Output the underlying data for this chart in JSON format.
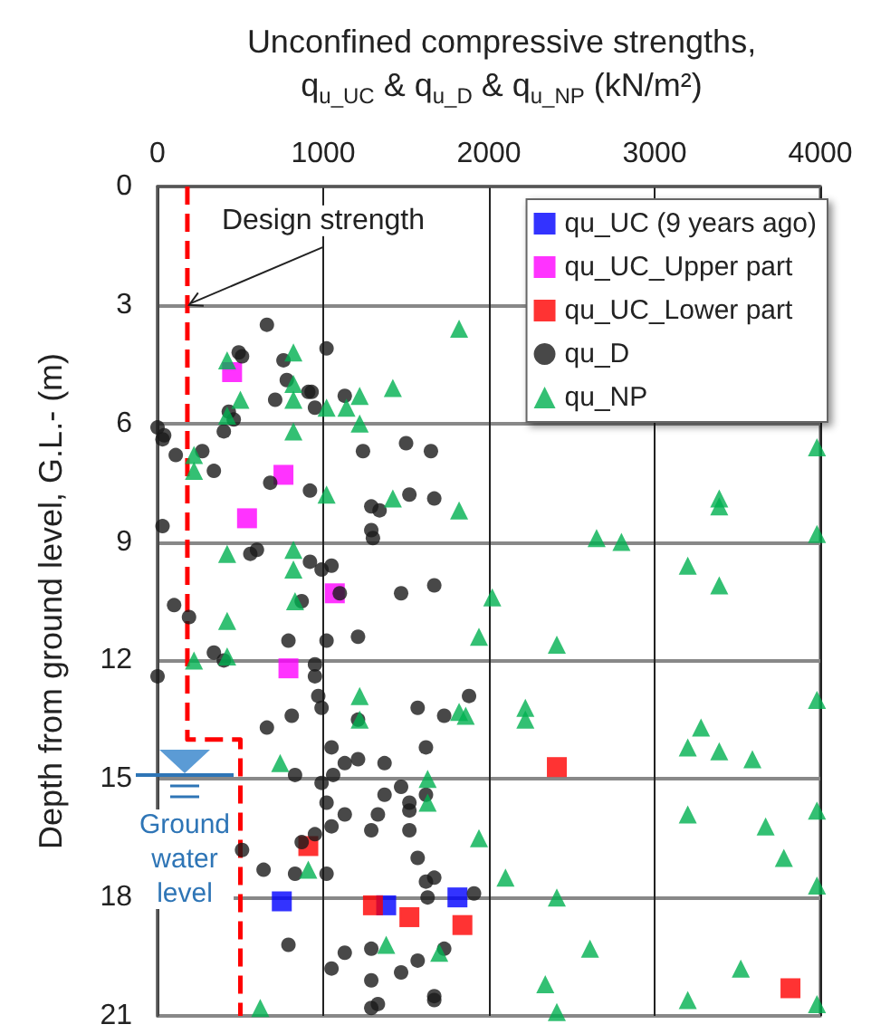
{
  "chart_data": {
    "type": "scatter",
    "xlabel": "Unconfined compressive strengths, q$_{u_UC}$ & q$_{u_D}$ & q$_{u_NP}$ (kN/m²)",
    "ylabel": "Depth from ground level, G.L.- (m)",
    "xlim": [
      0,
      4000
    ],
    "xticks": [
      0,
      1000,
      2000,
      3000,
      4000
    ],
    "ylim": [
      21,
      0
    ],
    "yticks": [
      0,
      3,
      6,
      9,
      12,
      15,
      18,
      21
    ],
    "grid": true,
    "legend": "top right",
    "annotations": [
      {
        "text": "Design strength",
        "x": 180,
        "y": 3
      },
      "Ground water level"
    ],
    "series": [
      {
        "name": "qu_UC (9 years ago)",
        "color": "#0000ff",
        "marker": "square",
        "x": [
          750,
          1380,
          1810
        ],
        "values": [
          18.1,
          18.2,
          18.0
        ]
      },
      {
        "name": "qu_UC_Upper part",
        "color": "#ff00ff",
        "marker": "square",
        "x": [
          450,
          760,
          540,
          1070,
          790
        ],
        "values": [
          4.7,
          7.3,
          8.4,
          10.3,
          12.2
        ]
      },
      {
        "name": "qu_UC_Lower part",
        "color": "#ff0000",
        "marker": "square",
        "x": [
          910,
          1300,
          1520,
          1840,
          2410,
          3820
        ],
        "values": [
          16.7,
          18.2,
          18.5,
          18.7,
          14.7,
          20.3
        ]
      },
      {
        "name": "qu_D",
        "color": "#1a1a1a",
        "marker": "circle",
        "x": [
          660,
          490,
          510,
          760,
          1020,
          780,
          910,
          930,
          710,
          950,
          1130,
          430,
          460,
          0,
          40,
          30,
          110,
          270,
          340,
          400,
          680,
          920,
          1240,
          1500,
          1650,
          1290,
          1340,
          1520,
          1670,
          1290,
          1300,
          30,
          560,
          600,
          920,
          990,
          1050,
          1670,
          100,
          190,
          1100,
          870,
          1470,
          790,
          1020,
          1210,
          340,
          400,
          0,
          950,
          950,
          970,
          990,
          810,
          660,
          1210,
          1570,
          1730,
          1880,
          1050,
          1130,
          1210,
          1370,
          1620,
          1060,
          830,
          990,
          1020,
          1130,
          1050,
          1370,
          1470,
          1520,
          1520,
          1620,
          1330,
          1290,
          1520,
          950,
          870,
          510,
          640,
          830,
          1020,
          1570,
          1620,
          1670,
          1630,
          1910,
          790,
          1130,
          1050,
          1290,
          1570,
          1730,
          1470,
          1290,
          1670,
          1670,
          1330,
          1290
        ],
        "values": [
          3.5,
          4.2,
          4.3,
          4.4,
          4.1,
          4.9,
          5.2,
          5.2,
          5.4,
          5.6,
          5.3,
          5.7,
          5.9,
          6.1,
          6.3,
          6.4,
          6.8,
          6.7,
          7.2,
          6.2,
          7.5,
          7.7,
          6.7,
          6.5,
          6.7,
          8.1,
          8.2,
          7.8,
          7.9,
          8.7,
          8.9,
          8.6,
          9.3,
          9.2,
          9.5,
          9.7,
          9.6,
          10.1,
          10.6,
          10.9,
          10.3,
          10.5,
          10.3,
          11.5,
          11.5,
          11.4,
          11.8,
          12.0,
          12.4,
          12.1,
          12.4,
          12.9,
          13.2,
          13.4,
          13.7,
          13.5,
          13.2,
          13.4,
          12.9,
          14.2,
          14.6,
          14.5,
          14.6,
          14.2,
          14.9,
          14.9,
          15.1,
          15.6,
          15.9,
          16.2,
          15.4,
          15.2,
          15.6,
          15.8,
          15.4,
          15.9,
          16.3,
          16.3,
          16.4,
          16.6,
          16.8,
          17.3,
          17.4,
          17.4,
          17.0,
          17.6,
          17.5,
          18.0,
          17.9,
          19.2,
          19.4,
          19.8,
          19.3,
          19.6,
          19.3,
          19.9,
          20.1,
          20.5,
          20.6,
          20.7,
          20.8
        ]
      },
      {
        "name": "qu_NP",
        "color": "#00b050",
        "marker": "triangle",
        "x": [
          1820,
          420,
          820,
          500,
          820,
          820,
          420,
          1020,
          1140,
          1220,
          1420,
          1220,
          820,
          220,
          220,
          1020,
          1420,
          1820,
          420,
          820,
          820,
          420,
          220,
          420,
          2020,
          830,
          1940,
          1220,
          1220,
          1820,
          1860,
          740,
          1630,
          1630,
          1940,
          910,
          2100,
          1380,
          1700,
          620,
          3980,
          3390,
          3390,
          2650,
          2800,
          3980,
          3200,
          3390,
          2410,
          2220,
          2220,
          3280,
          3200,
          3390,
          3590,
          3980,
          3200,
          3670,
          3780,
          3980,
          3980,
          2410,
          2610,
          2340,
          2410,
          3520,
          3200,
          3980
        ],
        "values": [
          3.6,
          4.4,
          4.2,
          5.4,
          5.0,
          5.4,
          5.8,
          5.6,
          5.6,
          5.3,
          5.1,
          6.0,
          6.2,
          6.8,
          7.2,
          7.8,
          7.9,
          8.2,
          9.3,
          9.2,
          9.7,
          11.0,
          12.0,
          11.9,
          10.4,
          10.5,
          11.4,
          12.9,
          13.5,
          13.3,
          13.4,
          14.6,
          15.0,
          15.6,
          16.5,
          17.3,
          17.5,
          19.2,
          19.4,
          20.8,
          6.6,
          7.9,
          8.1,
          8.9,
          9.0,
          8.8,
          9.6,
          10.1,
          11.6,
          13.2,
          13.5,
          13.7,
          14.2,
          14.3,
          14.5,
          13.0,
          15.9,
          16.2,
          17.0,
          15.8,
          17.7,
          18.0,
          19.3,
          20.2,
          20.9,
          19.8,
          20.6,
          20.7
        ]
      },
      {
        "type": "line",
        "color": "#ff0000",
        "marker": "none",
        "line_style": "dashed",
        "x": [
          180,
          180,
          500,
          500
        ],
        "values": [
          0,
          14,
          14,
          21
        ]
      }
    ]
  }
}
